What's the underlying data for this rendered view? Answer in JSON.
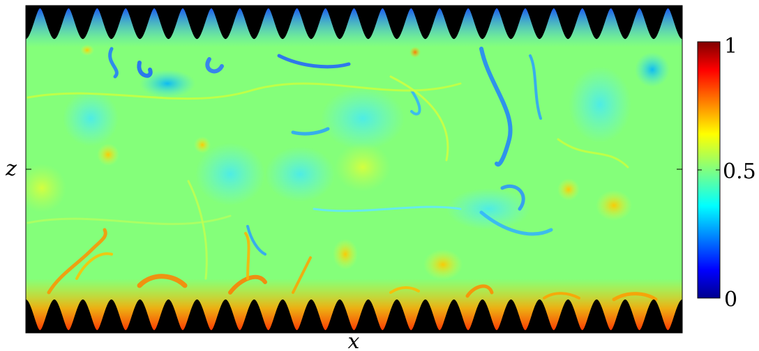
{
  "chart_data": {
    "type": "heatmap",
    "title": "",
    "xlabel": "x",
    "ylabel": "z",
    "colorbar": {
      "colormap": "jet",
      "range": [
        0,
        1
      ],
      "ticks": [
        "1",
        "0.5",
        "0"
      ],
      "tick_values": [
        1,
        0.5,
        0
      ]
    },
    "background_mean": 0.5,
    "boundaries": {
      "top_wall": {
        "color": "#000000",
        "num_roughness_elements": 23,
        "fluid_value": 0.25
      },
      "bottom_wall": {
        "color": "#000000",
        "num_roughness_elements": 23,
        "fluid_value": 0.8
      }
    },
    "colors": {
      "wall": "#000000",
      "background": "#80ff80"
    }
  }
}
